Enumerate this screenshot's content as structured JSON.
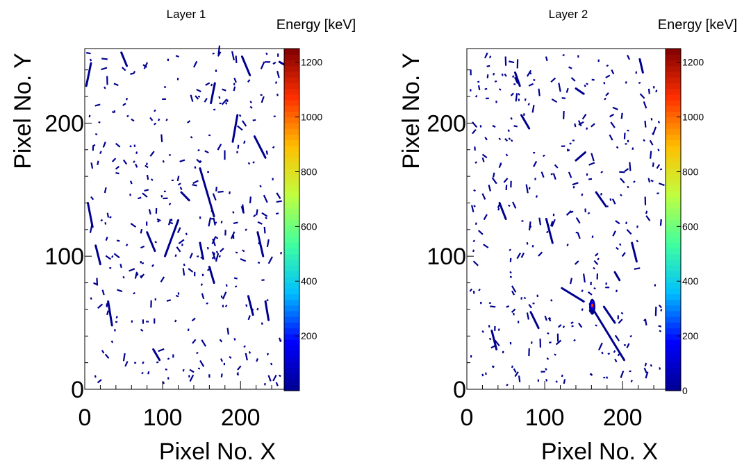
{
  "chart_data": [
    {
      "type": "heatmap",
      "title": "Layer 1",
      "xlabel": "Pixel No. X",
      "ylabel": "Pixel No. Y",
      "colorbar_label": "Energy [keV]",
      "xlim": [
        0,
        256
      ],
      "ylim": [
        0,
        256
      ],
      "zlim": [
        0,
        1250
      ],
      "x_ticks": [
        0,
        100,
        200
      ],
      "y_ticks": [
        0,
        100,
        200
      ],
      "z_ticks": [
        200,
        400,
        600,
        800,
        1000,
        1200
      ],
      "colormap": [
        "#00008f",
        "#0000ff",
        "#00bfff",
        "#40ff9f",
        "#bfff40",
        "#ffbf00",
        "#ff3000",
        "#800000"
      ],
      "tracks": [
        {
          "x": [
            148,
            166
          ],
          "y": [
            166,
            130
          ],
          "e": 60
        },
        {
          "x": [
            124,
            134
          ],
          "y": [
            148,
            142
          ],
          "e": 60
        },
        {
          "x": [
            103,
            120
          ],
          "y": [
            100,
            127
          ],
          "e": 50
        },
        {
          "x": [
            190,
            196
          ],
          "y": [
            186,
            206
          ],
          "e": 50
        },
        {
          "x": [
            2,
            8
          ],
          "y": [
            228,
            245
          ],
          "e": 50
        },
        {
          "x": [
            47,
            54
          ],
          "y": [
            253,
            243
          ],
          "e": 50
        },
        {
          "x": [
            162,
            167
          ],
          "y": [
            215,
            230
          ],
          "e": 50
        },
        {
          "x": [
            218,
            232
          ],
          "y": [
            190,
            174
          ],
          "e": 50
        },
        {
          "x": [
            14,
            20
          ],
          "y": [
            108,
            94
          ],
          "e": 50
        },
        {
          "x": [
            222,
            229
          ],
          "y": [
            118,
            100
          ],
          "e": 50
        },
        {
          "x": [
            210,
            216
          ],
          "y": [
            70,
            56
          ],
          "e": 50
        },
        {
          "x": [
            232,
            236
          ],
          "y": [
            66,
            52
          ],
          "e": 50
        },
        {
          "x": [
            30,
            35
          ],
          "y": [
            66,
            48
          ],
          "e": 50
        },
        {
          "x": [
            80,
            90
          ],
          "y": [
            118,
            104
          ],
          "e": 50
        },
        {
          "x": [
            160,
            166
          ],
          "y": [
            92,
            80
          ],
          "e": 50
        },
        {
          "x": [
            4,
            10
          ],
          "y": [
            140,
            122
          ],
          "e": 50
        },
        {
          "x": [
            88,
            96
          ],
          "y": [
            30,
            22
          ],
          "e": 50
        },
        {
          "x": [
            202,
            212
          ],
          "y": [
            250,
            236
          ],
          "e": 50
        },
        {
          "x": [
            148,
            152
          ],
          "y": [
            110,
            98
          ],
          "e": 50
        },
        {
          "x": [
            250,
            256
          ],
          "y": [
            246,
            244
          ],
          "e": 50
        }
      ],
      "scatter_count": 330,
      "seed": 11
    },
    {
      "type": "heatmap",
      "title": "Layer 2",
      "xlabel": "Pixel No. X",
      "ylabel": "Pixel No. Y",
      "colorbar_label": "Energy [keV]",
      "xlim": [
        0,
        256
      ],
      "ylim": [
        0,
        256
      ],
      "zlim": [
        0,
        1250
      ],
      "x_ticks": [
        0,
        100,
        200
      ],
      "y_ticks": [
        0,
        100,
        200
      ],
      "z_ticks": [
        0,
        200,
        400,
        600,
        800,
        1000,
        1200
      ],
      "colormap": [
        "#00008f",
        "#0000ff",
        "#00bfff",
        "#40ff9f",
        "#bfff40",
        "#ffbf00",
        "#ff3000",
        "#800000"
      ],
      "tracks": [
        {
          "x": [
            158,
            202
          ],
          "y": [
            64,
            22
          ],
          "e": 60
        },
        {
          "x": [
            176,
            190
          ],
          "y": [
            62,
            50
          ],
          "e": 50
        },
        {
          "x": [
            122,
            150
          ],
          "y": [
            76,
            66
          ],
          "e": 50
        },
        {
          "x": [
            70,
            80
          ],
          "y": [
            206,
            196
          ],
          "e": 50
        },
        {
          "x": [
            140,
            152
          ],
          "y": [
            172,
            178
          ],
          "e": 50
        },
        {
          "x": [
            166,
            178
          ],
          "y": [
            148,
            138
          ],
          "e": 50
        },
        {
          "x": [
            222,
            226
          ],
          "y": [
            248,
            238
          ],
          "e": 50
        },
        {
          "x": [
            42,
            50
          ],
          "y": [
            140,
            128
          ],
          "e": 50
        },
        {
          "x": [
            102,
            110
          ],
          "y": [
            128,
            110
          ],
          "e": 50
        },
        {
          "x": [
            32,
            38
          ],
          "y": [
            44,
            30
          ],
          "e": 50
        },
        {
          "x": [
            140,
            150
          ],
          "y": [
            226,
            222
          ],
          "e": 50
        },
        {
          "x": [
            190,
            196
          ],
          "y": [
            88,
            82
          ],
          "e": 50
        },
        {
          "x": [
            212,
            218
          ],
          "y": [
            110,
            96
          ],
          "e": 50
        },
        {
          "x": [
            62,
            68
          ],
          "y": [
            238,
            228
          ],
          "e": 50
        },
        {
          "x": [
            82,
            92
          ],
          "y": [
            58,
            46
          ],
          "e": 50
        }
      ],
      "blobs": [
        {
          "x": 161,
          "y": 62,
          "rx": 4,
          "ry": 6,
          "e": 30
        },
        {
          "x": 161,
          "y": 63,
          "rx": 2.6,
          "ry": 3.4,
          "e": 220
        },
        {
          "x": 161,
          "y": 63,
          "rx": 1.4,
          "ry": 1.4,
          "e": 1150
        }
      ],
      "scatter_count": 330,
      "seed": 29
    }
  ]
}
